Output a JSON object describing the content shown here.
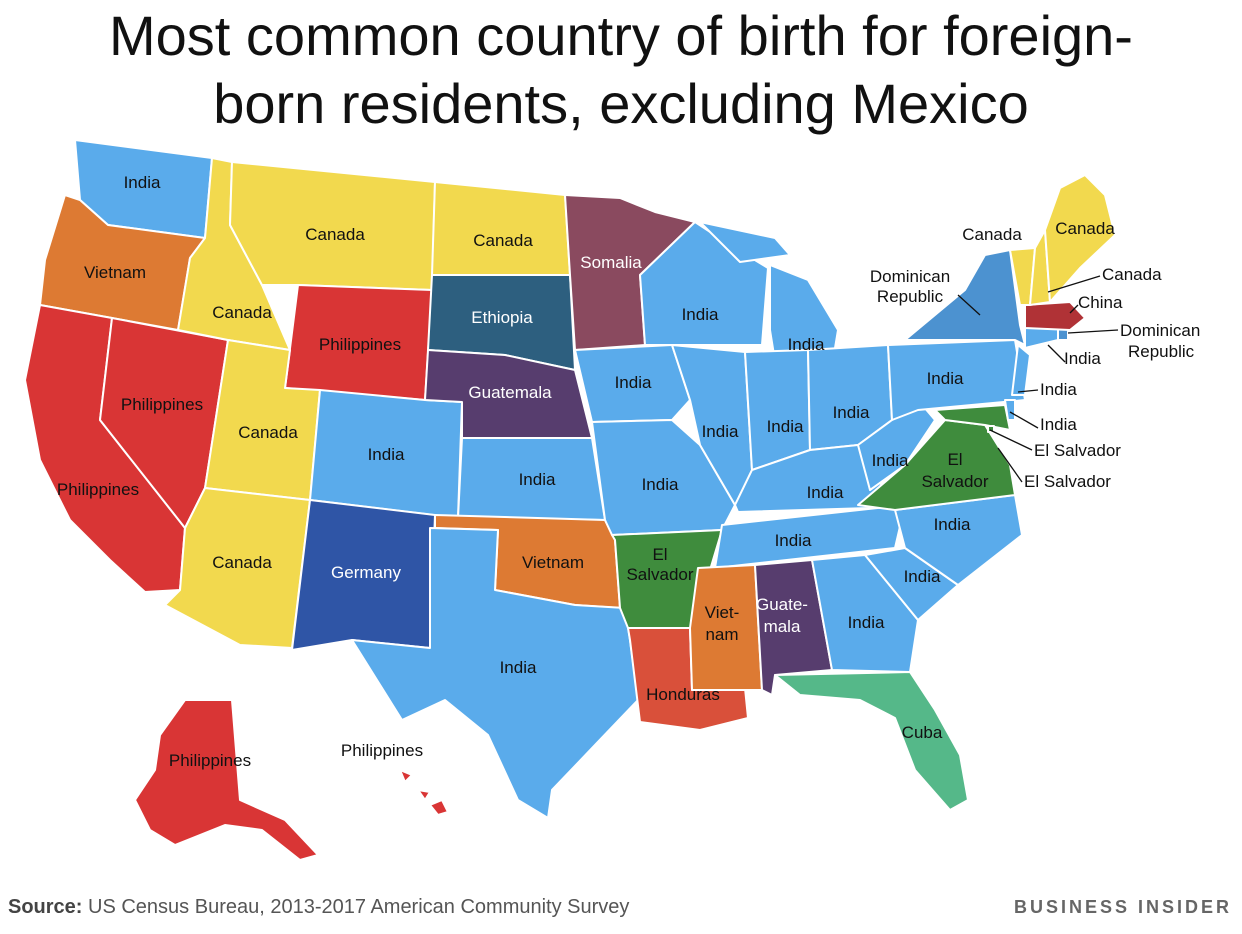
{
  "title_line1": "Most common country of birth for foreign-",
  "title_line2": "born residents, excluding Mexico",
  "colors": {
    "india": "#5aabeb",
    "canada": "#f2d94e",
    "philippines": "#d93535",
    "vietnam": "#dd7a33",
    "ethiopia": "#2d5f7f",
    "somalia": "#8a4a5f",
    "guatemala": "#573d6e",
    "germany": "#2f55a6",
    "el_salvador": "#3f8c3d",
    "honduras": "#d9503a",
    "cuba": "#55b889",
    "dominican_republic": "#4c92d0",
    "china": "#b03236"
  },
  "labels": {
    "wa": "India",
    "or": "Vietnam",
    "ca": "Philippines",
    "nv": "Philippines",
    "id": "Canada",
    "mt": "Canada",
    "wy": "Philippines",
    "ut": "Canada",
    "az": "Canada",
    "co": "India",
    "nm": "Germany",
    "nd": "Canada",
    "sd": "Ethiopia",
    "ne": "Guatemala",
    "ks": "India",
    "ok": "Vietnam",
    "tx": "India",
    "mn": "Somalia",
    "ia": "India",
    "mo": "India",
    "ar_line1": "El",
    "ar_line2": "Salvador",
    "la": "Honduras",
    "wi": "India",
    "il": "India",
    "mi": "India",
    "in": "India",
    "oh": "India",
    "ky": "India",
    "tn": "India",
    "ms_line1": "Viet-",
    "ms_line2": "nam",
    "al_line1": "Guate-",
    "al_line2": "mala",
    "ga": "India",
    "fl": "Cuba",
    "sc": "India",
    "nc": "India",
    "va_line1": "El",
    "va_line2": "Salvador",
    "wv": "India",
    "pa": "India",
    "ny_line1": "Dominican",
    "ny_line2": "Republic",
    "vt": "Canada",
    "me": "Canada",
    "nh": "Canada",
    "ma": "China",
    "ri_line1": "Dominican",
    "ri_line2": "Republic",
    "ct": "India",
    "nj": "India",
    "de": "India",
    "md": "El Salvador",
    "dc": "El Salvador",
    "ak": "Philippines",
    "hi": "Philippines"
  },
  "source_label": "Source:",
  "source_text": " US Census Bureau, 2013-2017 American Community Survey",
  "brand": "BUSINESS INSIDER"
}
